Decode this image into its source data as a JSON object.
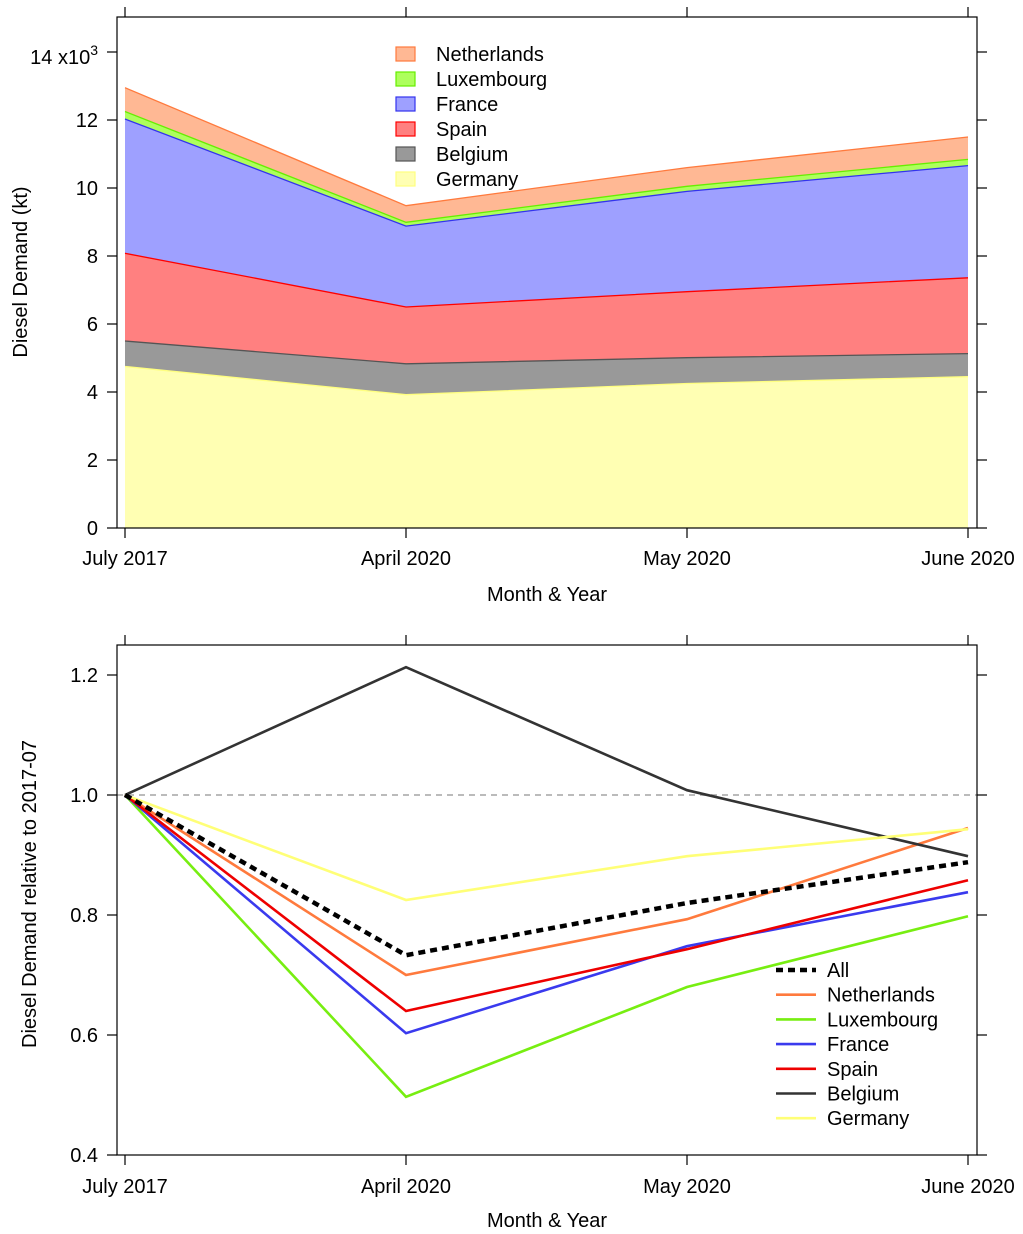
{
  "chart_data": [
    {
      "type": "area",
      "stacked": true,
      "title": "",
      "xlabel": "Month & Year",
      "ylabel": "Diesel Demand (kt)",
      "y_scale_label": "x10",
      "y_scale_exp": "3",
      "categories": [
        "July 2017",
        "April 2020",
        "May 2020",
        "June 2020"
      ],
      "ylim": [
        0,
        15
      ],
      "yticks": [
        0,
        2,
        4,
        6,
        8,
        10,
        12,
        14
      ],
      "legend_position": "top-center",
      "series": [
        {
          "name": "Germany",
          "values": [
            4.75,
            3.92,
            4.25,
            4.45
          ],
          "fill": "#ffffb3",
          "line": "#ffff80"
        },
        {
          "name": "Belgium",
          "values": [
            0.75,
            0.91,
            0.76,
            0.68
          ],
          "fill": "#999999",
          "line": "#555555"
        },
        {
          "name": "Spain",
          "values": [
            2.58,
            1.67,
            1.94,
            2.23
          ],
          "fill": "#ff8080",
          "line": "#ff0000"
        },
        {
          "name": "France",
          "values": [
            3.95,
            2.38,
            2.95,
            3.3
          ],
          "fill": "#9ea0ff",
          "line": "#3333ee"
        },
        {
          "name": "Luxembourg",
          "values": [
            0.22,
            0.11,
            0.15,
            0.18
          ],
          "fill": "#adff5c",
          "line": "#66ee00"
        },
        {
          "name": "Netherlands",
          "values": [
            0.7,
            0.49,
            0.55,
            0.66
          ],
          "fill": "#ffb894",
          "line": "#ff7a3d"
        }
      ]
    },
    {
      "type": "line",
      "title": "",
      "xlabel": "Month & Year",
      "ylabel": "Diesel Demand relative to 2017-07",
      "categories": [
        "July 2017",
        "April 2020",
        "May 2020",
        "June 2020"
      ],
      "ylim": [
        0.4,
        1.25
      ],
      "yticks": [
        0.4,
        0.6,
        0.8,
        1.0,
        1.2
      ],
      "ytick_labels": [
        "0.4",
        "0.6",
        "0.8",
        "1.0",
        "1.2"
      ],
      "reference_line": 1.0,
      "legend_position": "bottom-right",
      "series": [
        {
          "name": "All",
          "values": [
            1.0,
            0.733,
            0.82,
            0.888
          ],
          "color": "#000000",
          "dashed": true
        },
        {
          "name": "Netherlands",
          "values": [
            1.0,
            0.7,
            0.793,
            0.945
          ],
          "color": "#ff7a3d"
        },
        {
          "name": "Luxembourg",
          "values": [
            1.0,
            0.497,
            0.68,
            0.798
          ],
          "color": "#77ee11"
        },
        {
          "name": "France",
          "values": [
            1.0,
            0.603,
            0.748,
            0.838
          ],
          "color": "#3a3aee"
        },
        {
          "name": "Spain",
          "values": [
            1.0,
            0.64,
            0.743,
            0.858
          ],
          "color": "#ee0000"
        },
        {
          "name": "Belgium",
          "values": [
            1.0,
            1.213,
            1.008,
            0.898
          ],
          "color": "#333333"
        },
        {
          "name": "Germany",
          "values": [
            1.0,
            0.825,
            0.898,
            0.943
          ],
          "color": "#ffff77"
        }
      ]
    }
  ]
}
